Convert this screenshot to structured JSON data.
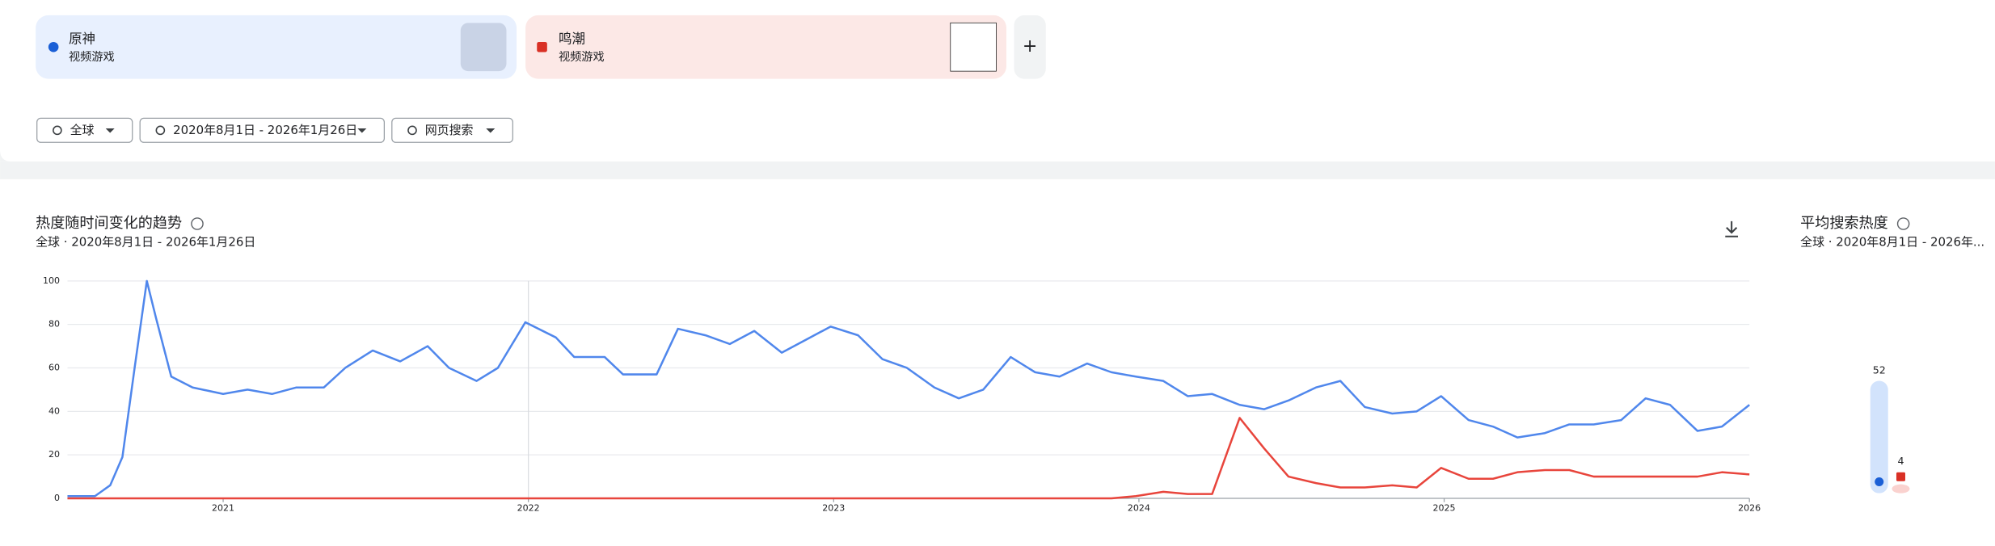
{
  "header": {
    "categories": [
      "视频游戏",
      "视频游戏"
    ],
    "add_button": "+",
    "filters": [
      "全球",
      "2020年8月1日 - 2026年1月26日",
      "网页搜索"
    ]
  },
  "chart_data": {
    "type": "line",
    "title": "热度随时间变化的趋势",
    "subtitle": "全球 · 2020年8月1日 - 2026年1月26日",
    "x": [
      2020.49,
      2020.58,
      2020.63,
      2020.67,
      2020.71,
      2020.75,
      2020.78,
      2020.83,
      2020.9,
      2021,
      2021.08,
      2021.16,
      2021.24,
      2021.33,
      2021.4,
      2021.49,
      2021.58,
      2021.67,
      2021.74,
      2021.83,
      2021.9,
      2021.99,
      2022.09,
      2022.15,
      2022.25,
      2022.31,
      2022.42,
      2022.49,
      2022.58,
      2022.66,
      2022.74,
      2022.83,
      2022.91,
      2022.99,
      2023.08,
      2023.16,
      2023.24,
      2023.33,
      2023.41,
      2023.49,
      2023.58,
      2023.66,
      2023.74,
      2023.83,
      2023.91,
      2023.99,
      2024.08,
      2024.16,
      2024.24,
      2024.33,
      2024.41,
      2024.49,
      2024.58,
      2024.66,
      2024.74,
      2024.83,
      2024.91,
      2024.99,
      2025.08,
      2025.16,
      2025.24,
      2025.33,
      2025.41,
      2025.49,
      2025.58,
      2025.66,
      2025.74,
      2025.83,
      2025.91,
      2026
    ],
    "xlim": [
      2020.49,
      2026
    ],
    "xticks": [
      2021,
      2022,
      2023,
      2024,
      2025,
      2026
    ],
    "ylim": [
      0,
      100
    ],
    "yticks": [
      0,
      20,
      40,
      60,
      80,
      100
    ],
    "grid": true,
    "series": [
      {
        "name": "原神",
        "color": "#5087ec",
        "values": [
          1,
          1,
          6,
          19,
          60,
          100,
          83,
          56,
          51,
          48,
          50,
          48,
          51,
          51,
          60,
          68,
          63,
          70,
          60,
          54,
          60,
          81,
          74,
          65,
          65,
          57,
          57,
          78,
          75,
          71,
          77,
          67,
          73,
          79,
          75,
          64,
          60,
          51,
          46,
          50,
          65,
          58,
          56,
          62,
          58,
          56,
          54,
          47,
          48,
          43,
          41,
          45,
          51,
          54,
          42,
          39,
          40,
          47,
          36,
          33,
          28,
          30,
          34,
          34,
          36,
          46,
          43,
          31,
          33,
          43
        ]
      },
      {
        "name": "鸣潮",
        "color": "#e8453c",
        "values": [
          0,
          0,
          0,
          0,
          0,
          0,
          0,
          0,
          0,
          0,
          0,
          0,
          0,
          0,
          0,
          0,
          0,
          0,
          0,
          0,
          0,
          0,
          0,
          0,
          0,
          0,
          0,
          0,
          0,
          0,
          0,
          0,
          0,
          0,
          0,
          0,
          0,
          0,
          0,
          0,
          0,
          0,
          0,
          0,
          0,
          1,
          3,
          2,
          2,
          37,
          23,
          10,
          7,
          5,
          5,
          6,
          5,
          14,
          9,
          9,
          12,
          13,
          13,
          10,
          10,
          10,
          10,
          10,
          12,
          11
        ]
      }
    ]
  },
  "average": {
    "title": "平均搜索热度",
    "subtitle": "全球 · 2020年8月1日 - 2026年...",
    "values": [
      52,
      4
    ]
  }
}
